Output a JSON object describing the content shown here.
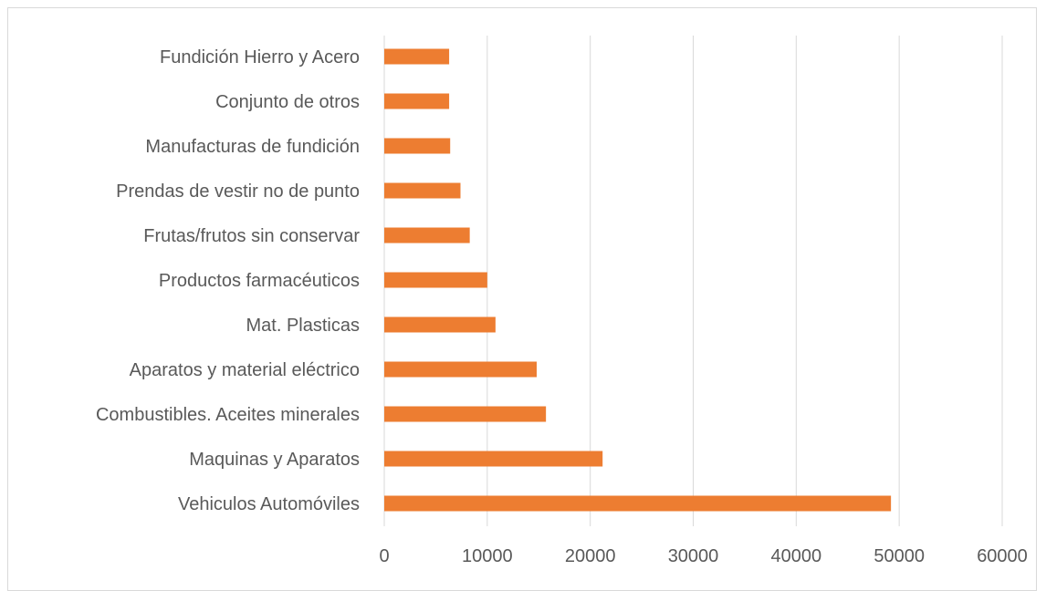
{
  "chart_data": {
    "type": "bar",
    "orientation": "horizontal",
    "title": "",
    "xlabel": "",
    "ylabel": "",
    "categories": [
      "Vehiculos Automóviles",
      "Maquinas y Aparatos",
      "Combustibles. Aceites minerales",
      "Aparatos y material eléctrico",
      "Mat. Plasticas",
      "Productos farmacéuticos",
      "Frutas/frutos sin conservar",
      "Prendas de vestir no de punto",
      "Manufacturas de fundición",
      "Conjunto de otros",
      "Fundición Hierro y Acero"
    ],
    "values": [
      49200,
      21200,
      15700,
      14800,
      10800,
      10000,
      8300,
      7400,
      6400,
      6300,
      6300
    ],
    "xlim": [
      0,
      60000
    ],
    "xticks": [
      0,
      10000,
      20000,
      30000,
      40000,
      50000,
      60000
    ],
    "grid": "vertical",
    "legend": "none",
    "bar_color": "#ED7D31"
  }
}
